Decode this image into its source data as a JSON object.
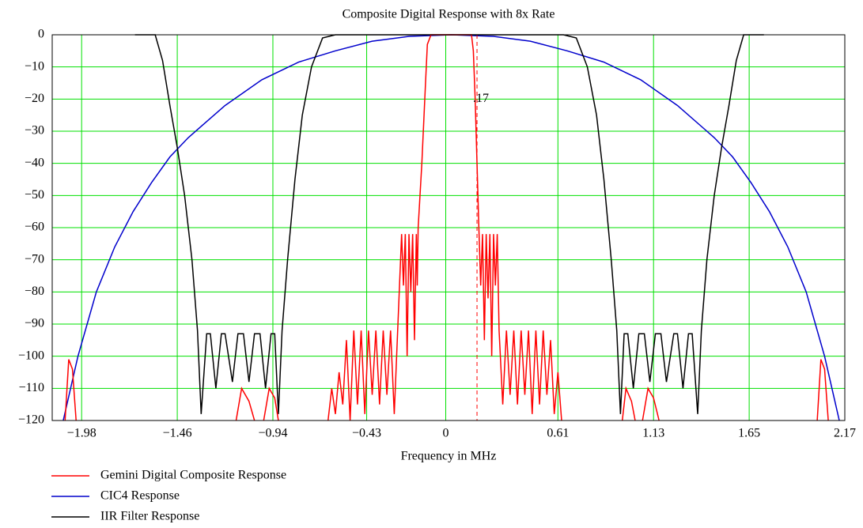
{
  "chart_data": {
    "type": "line",
    "title": "Composite Digital Response with 8x Rate",
    "xlabel": "Frequency in MHz",
    "xlim": [
      -2.14,
      2.17
    ],
    "ylim": [
      -120,
      0
    ],
    "xticks": [
      {
        "value": -1.98,
        "label": "−1.98"
      },
      {
        "value": -1.46,
        "label": "−1.46"
      },
      {
        "value": -0.94,
        "label": "−0.94"
      },
      {
        "value": -0.43,
        "label": "−0.43"
      },
      0,
      0.61,
      1.13,
      1.65,
      2.17
    ],
    "yticks": [
      0,
      {
        "value": -10,
        "label": "−10"
      },
      {
        "value": -20,
        "label": "−20"
      },
      {
        "value": -30,
        "label": "−30"
      },
      {
        "value": -40,
        "label": "−40"
      },
      {
        "value": -50,
        "label": "−50"
      },
      {
        "value": -60,
        "label": "−60"
      },
      {
        "value": -70,
        "label": "−70"
      },
      {
        "value": -80,
        "label": "−80"
      },
      {
        "value": -90,
        "label": "−90"
      },
      {
        "value": -100,
        "label": "−100"
      },
      {
        "value": -110,
        "label": "−110"
      },
      {
        "value": -120,
        "label": "−120"
      }
    ],
    "grid": true,
    "grid_color": "#00e000",
    "annotation": {
      "text": ".17",
      "x": 0.17,
      "y": -20,
      "color": "#ff0000"
    },
    "series": [
      {
        "name": "Gemini Digital Composite Response",
        "color": "#ff0000",
        "x": [
          -2.07,
          -2.05,
          -2.03,
          -2.01,
          -1.5,
          -1.14,
          -1.11,
          -1.07,
          -1.04,
          -1.0,
          -0.99,
          -0.96,
          -0.93,
          -0.91,
          -0.8,
          -0.64,
          -0.62,
          -0.6,
          -0.58,
          -0.56,
          -0.54,
          -0.52,
          -0.5,
          -0.48,
          -0.46,
          -0.44,
          -0.42,
          -0.4,
          -0.38,
          -0.36,
          -0.34,
          -0.32,
          -0.3,
          -0.28,
          -0.26,
          -0.24,
          -0.23,
          -0.22,
          -0.21,
          -0.2,
          -0.19,
          -0.18,
          -0.17,
          -0.16,
          -0.155,
          -0.15,
          -0.13,
          -0.11,
          -0.1,
          -0.08,
          0.0,
          0.1,
          0.14,
          0.15,
          0.16,
          0.17,
          0.18,
          0.19,
          0.2,
          0.21,
          0.22,
          0.23,
          0.24,
          0.25,
          0.26,
          0.27,
          0.28,
          0.29,
          0.31,
          0.33,
          0.35,
          0.37,
          0.39,
          0.41,
          0.43,
          0.45,
          0.47,
          0.49,
          0.51,
          0.53,
          0.55,
          0.57,
          0.59,
          0.61,
          0.63,
          0.8,
          0.96,
          0.98,
          1.01,
          1.03,
          1.05,
          1.07,
          1.1,
          1.13,
          1.16,
          1.5,
          2.02,
          2.04,
          2.06,
          2.08
        ],
        "values": [
          -120,
          -101,
          -104,
          -120,
          null,
          -120,
          -110,
          -114,
          -120,
          null,
          -120,
          -110,
          -113,
          -120,
          null,
          -120,
          -110,
          -118,
          -105,
          -115,
          -95,
          -120,
          -92,
          -115,
          -92,
          -118,
          -92,
          -112,
          -92,
          -115,
          -92,
          -112,
          -92,
          -118,
          -90,
          -62,
          -78,
          -62,
          -100,
          -62,
          -80,
          -62,
          -95,
          -62,
          -78,
          -60,
          -40,
          -15,
          -3,
          0,
          0,
          0,
          0,
          -5,
          -20,
          -40,
          -60,
          -78,
          -62,
          -95,
          -62,
          -82,
          -62,
          -100,
          -62,
          -78,
          -62,
          -92,
          -115,
          -92,
          -112,
          -92,
          -115,
          -92,
          -112,
          -92,
          -118,
          -92,
          -115,
          -92,
          -112,
          -95,
          -118,
          -105,
          -120,
          null,
          -120,
          -110,
          -114,
          -120,
          null,
          -120,
          -110,
          -113,
          -120,
          null,
          -120,
          -101,
          -104,
          -120
        ]
      },
      {
        "name": "CIC4 Response",
        "color": "#0000cc",
        "x": [
          -2.08,
          -2.0,
          -1.9,
          -1.8,
          -1.7,
          -1.6,
          -1.5,
          -1.4,
          -1.2,
          -1.0,
          -0.8,
          -0.6,
          -0.4,
          -0.2,
          0.03,
          0.26,
          0.46,
          0.66,
          0.86,
          1.06,
          1.26,
          1.46,
          1.56,
          1.66,
          1.76,
          1.86,
          1.96,
          2.06,
          2.14
        ],
        "values": [
          -120,
          -100,
          -80,
          -66,
          -55,
          -46,
          -38,
          -32,
          -22,
          -14,
          -8.5,
          -5,
          -2,
          -0.5,
          0,
          -0.5,
          -2,
          -5,
          -8.5,
          -14,
          -22,
          -32,
          -38,
          -46,
          -55,
          -66,
          -80,
          -100,
          -120
        ]
      },
      {
        "name": "IIR Filter Response",
        "color": "#000000",
        "x": [
          -1.69,
          -1.58,
          -1.54,
          -1.5,
          -1.46,
          -1.42,
          -1.38,
          -1.35,
          -1.33,
          -1.3,
          -1.28,
          -1.25,
          -1.22,
          -1.2,
          -1.16,
          -1.13,
          -1.1,
          -1.07,
          -1.04,
          -1.01,
          -0.98,
          -0.95,
          -0.93,
          -0.91,
          -0.89,
          -0.86,
          -0.82,
          -0.78,
          -0.73,
          -0.67,
          -0.6,
          0.64,
          0.71,
          0.77,
          0.82,
          0.86,
          0.9,
          0.93,
          0.95,
          0.97,
          0.99,
          1.02,
          1.05,
          1.08,
          1.11,
          1.14,
          1.17,
          1.2,
          1.24,
          1.26,
          1.29,
          1.32,
          1.34,
          1.37,
          1.39,
          1.42,
          1.46,
          1.5,
          1.54,
          1.58,
          1.62,
          1.73
        ],
        "values": [
          0,
          0,
          -8,
          -22,
          -35,
          -50,
          -70,
          -92,
          -118,
          -93,
          -93,
          -110,
          -93,
          -93,
          -108,
          -93,
          -93,
          -108,
          -93,
          -93,
          -110,
          -93,
          -93,
          -118,
          -92,
          -70,
          -45,
          -25,
          -10,
          -1,
          0,
          0,
          -1,
          -10,
          -25,
          -45,
          -70,
          -92,
          -118,
          -93,
          -93,
          -110,
          -93,
          -93,
          -108,
          -93,
          -93,
          -108,
          -93,
          -93,
          -110,
          -93,
          -93,
          -118,
          -92,
          -70,
          -50,
          -35,
          -22,
          -8,
          0,
          0
        ]
      }
    ]
  }
}
